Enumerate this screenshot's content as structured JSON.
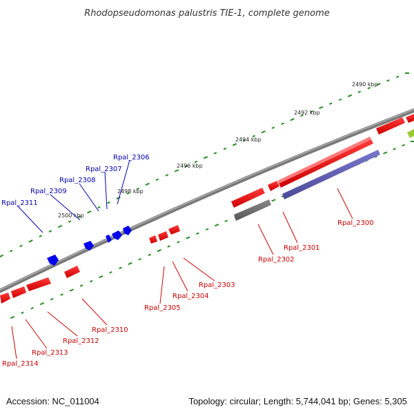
{
  "title": "Rhodopseudomonas palustris TIE-1, complete genome",
  "footer": {
    "accession": "Accession: NC_011004",
    "summary": "Topology: circular; Length: 5,744,041 bp; Genes: 5,305"
  },
  "colors": {
    "forward_gene": "#ff0000",
    "reverse_gene": "#0000ff",
    "rna_gene": "#6a6abf",
    "pseudo_gene": "#6e6e6e",
    "misc_gene": "#99cc33",
    "forward_label": "#cc0000",
    "reverse_label": "#0000aa",
    "tick": "#228b22",
    "backbone": "#808080"
  },
  "scale_ticks": [
    "2490 kbp",
    "2492 kbp",
    "2494 kbp",
    "2496 kbp",
    "2498 kbp",
    "2500 kbp"
  ],
  "genes": {
    "reverse": [
      "Rpal_2306",
      "Rpal_2307",
      "Rpal_2308",
      "Rpal_2309",
      "Rpal_2311"
    ],
    "forward": [
      "Rpal_2300",
      "Rpal_2301",
      "Rpal_2302",
      "Rpal_2303",
      "Rpal_2304",
      "Rpal_2305",
      "Rpal_2310",
      "Rpal_2312",
      "Rpal_2313",
      "Rpal_2314"
    ]
  }
}
